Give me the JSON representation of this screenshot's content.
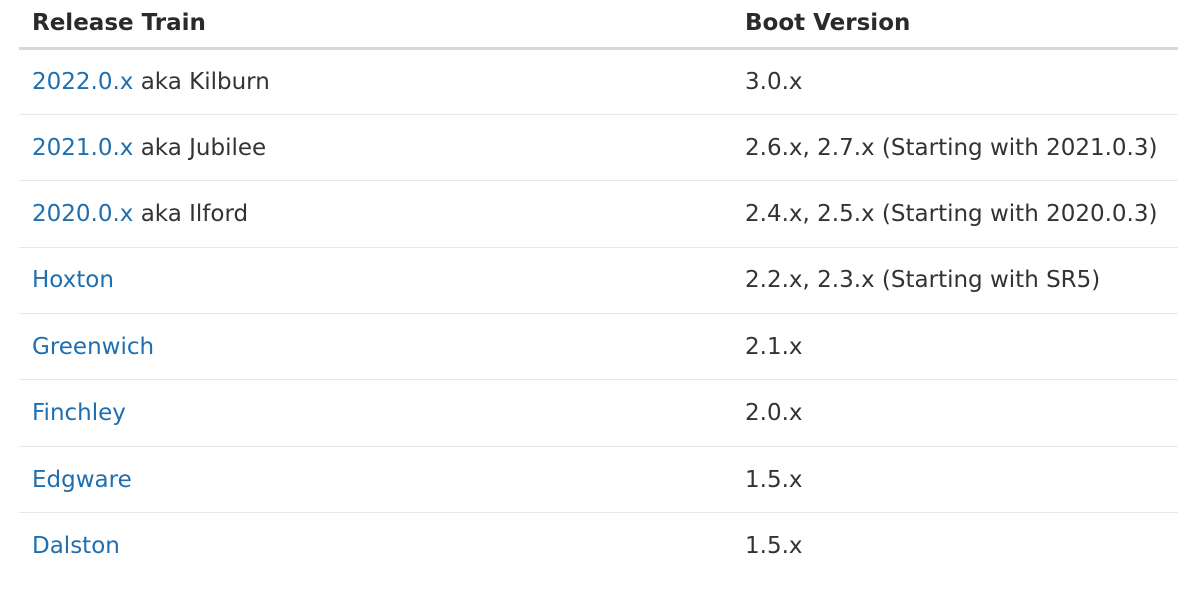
{
  "table": {
    "headers": [
      "Release Train",
      "Boot Version"
    ],
    "rows": [
      {
        "link": "2022.0.x",
        "suffix": " aka Kilburn",
        "boot": "3.0.x"
      },
      {
        "link": "2021.0.x",
        "suffix": " aka Jubilee",
        "boot": "2.6.x, 2.7.x (Starting with 2021.0.3)"
      },
      {
        "link": "2020.0.x",
        "suffix": " aka Ilford",
        "boot": "2.4.x, 2.5.x (Starting with 2020.0.3)"
      },
      {
        "link": "Hoxton",
        "suffix": "",
        "boot": "2.2.x, 2.3.x (Starting with SR5)"
      },
      {
        "link": "Greenwich",
        "suffix": "",
        "boot": "2.1.x"
      },
      {
        "link": "Finchley",
        "suffix": "",
        "boot": "2.0.x"
      },
      {
        "link": "Edgware",
        "suffix": "",
        "boot": "1.5.x"
      },
      {
        "link": "Dalston",
        "suffix": "",
        "boot": "1.5.x"
      }
    ]
  },
  "colors": {
    "link": "#1f6eb0",
    "text": "#333333",
    "header_rule": "#d3dadb",
    "row_rule": "#e6e9ea"
  }
}
